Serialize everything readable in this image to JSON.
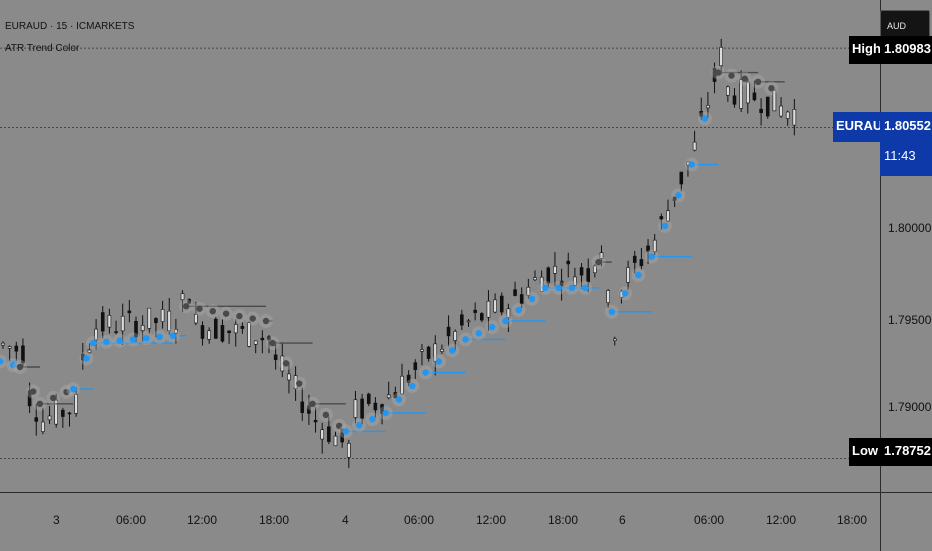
{
  "header": {
    "symbol_line": "EURAUD · 15 · ICMARKETS",
    "indicator_name": "ATR Trend Color"
  },
  "currency_button": "AUD",
  "price_axis": {
    "ticks": [
      "1.80000",
      "1.79500",
      "1.79000"
    ]
  },
  "markers": {
    "high": {
      "label": "High",
      "value": "1.80983"
    },
    "low": {
      "label": "Low",
      "value": "1.78752"
    },
    "current": {
      "label": "EURAUD",
      "value": "1.80552",
      "countdown": "11:43"
    }
  },
  "time_axis": {
    "ticks": [
      "3",
      "06:00",
      "12:00",
      "18:00",
      "4",
      "06:00",
      "12:00",
      "18:00",
      "6",
      "06:00",
      "12:00",
      "18:00"
    ]
  },
  "colors": {
    "background": "#8a8a8a",
    "candle": "#111111",
    "bull_trend": "#2196f3",
    "bear_trend": "#4a4a4a",
    "glow": "#b0b0b0",
    "current_badge": "#0d3aa8"
  },
  "chart_data": {
    "type": "candlestick",
    "symbol": "EURAUD",
    "timeframe": "15",
    "y_ticks": [
      1.79,
      1.795,
      1.8
    ],
    "high": 1.80983,
    "low": 1.78752,
    "last": 1.80552,
    "x_tick_labels": [
      "3",
      "06:00",
      "12:00",
      "18:00",
      "4",
      "06:00",
      "12:00",
      "18:00",
      "6",
      "06:00",
      "12:00",
      "18:00"
    ],
    "trend_line": [
      {
        "t": 0,
        "y": 1.7928,
        "dir": "bull"
      },
      {
        "t": 3,
        "y": 1.7925,
        "dir": "bear"
      },
      {
        "t": 6,
        "y": 1.7905,
        "dir": "bear"
      },
      {
        "t": 11,
        "y": 1.7913,
        "dir": "bull"
      },
      {
        "t": 14,
        "y": 1.7938,
        "dir": "bull"
      },
      {
        "t": 26,
        "y": 1.7942,
        "dir": "bull"
      },
      {
        "t": 28,
        "y": 1.7958,
        "dir": "bear"
      },
      {
        "t": 40,
        "y": 1.795,
        "dir": "bear"
      },
      {
        "t": 41,
        "y": 1.7938,
        "dir": "bear"
      },
      {
        "t": 47,
        "y": 1.7905,
        "dir": "bear"
      },
      {
        "t": 52,
        "y": 1.789,
        "dir": "bull"
      },
      {
        "t": 58,
        "y": 1.79,
        "dir": "bull"
      },
      {
        "t": 64,
        "y": 1.7922,
        "dir": "bull"
      },
      {
        "t": 70,
        "y": 1.794,
        "dir": "bull"
      },
      {
        "t": 76,
        "y": 1.795,
        "dir": "bull"
      },
      {
        "t": 82,
        "y": 1.7968,
        "dir": "bull"
      },
      {
        "t": 88,
        "y": 1.7968,
        "dir": "bull"
      },
      {
        "t": 90,
        "y": 1.7982,
        "dir": "bear"
      },
      {
        "t": 92,
        "y": 1.7955,
        "dir": "bull"
      },
      {
        "t": 98,
        "y": 1.7985,
        "dir": "bull"
      },
      {
        "t": 104,
        "y": 1.8035,
        "dir": "bull"
      },
      {
        "t": 108,
        "y": 1.8085,
        "dir": "bear"
      },
      {
        "t": 114,
        "y": 1.808,
        "dir": "bear"
      },
      {
        "t": 118,
        "y": 1.8073,
        "dir": "bear"
      }
    ]
  }
}
